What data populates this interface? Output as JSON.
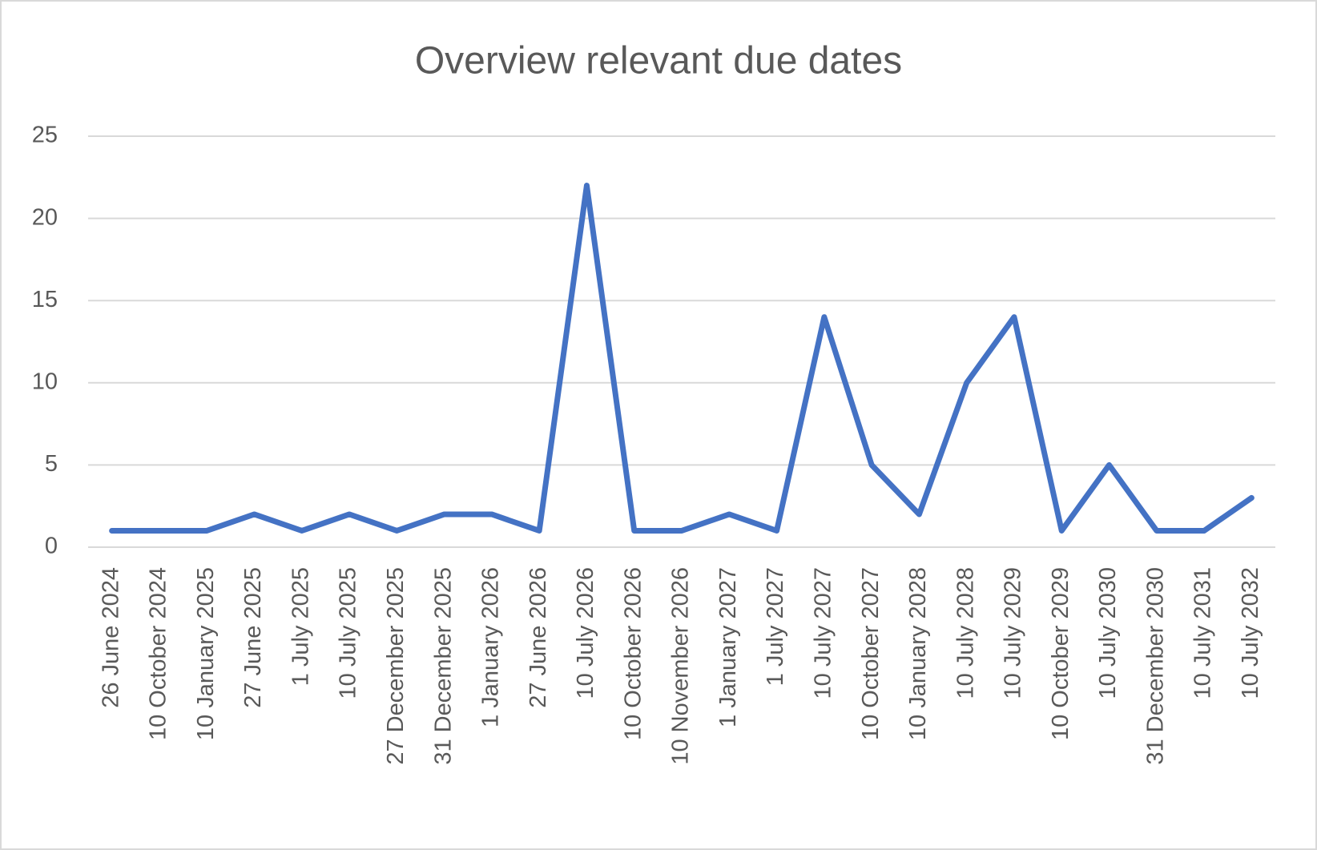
{
  "chart_data": {
    "type": "line",
    "title": "Overview relevant due dates",
    "categories": [
      "26 June 2024",
      "10 October 2024",
      "10 January 2025",
      "27 June 2025",
      "1 July 2025",
      "10 July 2025",
      "27 December 2025",
      "31 December 2025",
      "1 January 2026",
      "27 June 2026",
      "10 July 2026",
      "10 October 2026",
      "10 November 2026",
      "1 January 2027",
      "1 July 2027",
      "10 July 2027",
      "10 October 2027",
      "10 January 2028",
      "10 July 2028",
      "10 July 2029",
      "10 October 2029",
      "10 July 2030",
      "31 December 2030",
      "10 July 2031",
      "10 July 2032"
    ],
    "values": [
      1,
      1,
      1,
      2,
      1,
      2,
      1,
      2,
      2,
      1,
      22,
      1,
      1,
      2,
      1,
      14,
      5,
      2,
      10,
      14,
      1,
      5,
      1,
      1,
      3
    ],
    "color": "#4472c4",
    "ylim": [
      0,
      25
    ],
    "yticks": [
      0,
      5,
      10,
      15,
      20,
      25
    ],
    "grid": true
  }
}
